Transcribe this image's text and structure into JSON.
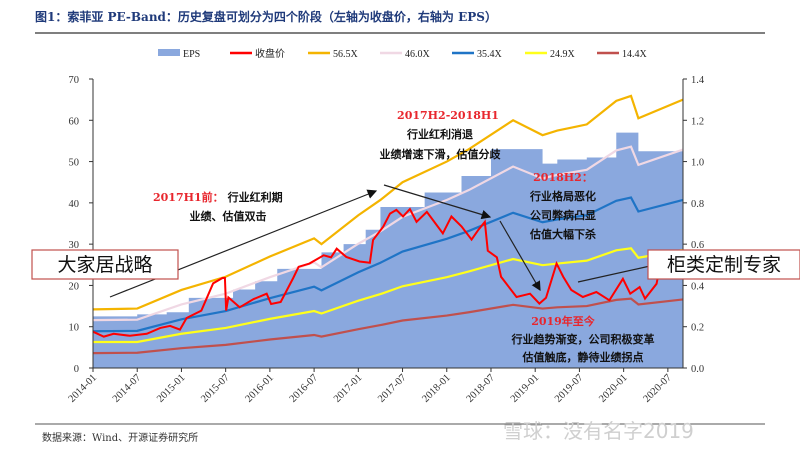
{
  "title": "图1：索菲亚 PE-Band：历史复盘可划分为四个阶段（左轴为收盘价，右轴为 EPS）",
  "source": "数据来源：Wind、开源证券研究所",
  "watermark": "雪球：没有名字2019",
  "callouts": {
    "left_box": "大家居战略",
    "right_box": "柜类定制专家"
  },
  "annotations": [
    {
      "red": "2017H1前：",
      "lines": [
        "行业红利期",
        "业绩、估值双击"
      ]
    },
    {
      "red": "2017H2-2018H1",
      "lines": [
        "行业红利消退",
        "业绩增速下滑，估值分歧"
      ]
    },
    {
      "red": "2018H2：",
      "lines": [
        "行业格局恶化",
        "公司弊病凸显",
        "估值大幅下杀"
      ]
    },
    {
      "red": "2019年至今",
      "lines": [
        "行业趋势渐变，公司积极变革",
        "估值触底，静待业绩拐点"
      ]
    }
  ],
  "chart_data": {
    "type": "line",
    "title": "索菲亚 PE-Band：历史复盘可划分为四个阶段（左轴为收盘价，右轴为 EPS）",
    "legend_position": "top",
    "grid": false,
    "x_ticks": [
      "2014-01",
      "2014-07",
      "2015-01",
      "2015-07",
      "2016-01",
      "2016-07",
      "2017-01",
      "2017-07",
      "2018-01",
      "2018-07",
      "2019-01",
      "2019-07",
      "2020-01",
      "2020-07"
    ],
    "y_left": {
      "range": [
        0,
        70
      ],
      "ticks": [
        "0",
        "10",
        "20",
        "30",
        "40",
        "50",
        "60",
        "70"
      ]
    },
    "y_right": {
      "range": [
        0,
        1.4
      ],
      "ticks": [
        "0.0",
        "0.2",
        "0.4",
        "0.6",
        "0.8",
        "1.0",
        "1.2",
        "1.4"
      ]
    },
    "legend": [
      "EPS",
      "收盘价",
      "56.5X",
      "46.0X",
      "35.4X",
      "24.9X",
      "14.4X"
    ],
    "colors": {
      "EPS": "#8aa8de",
      "收盘价": "#ff0000",
      "56.5X": "#f4b400",
      "46.0X": "#f0d8e4",
      "35.4X": "#1f74c6",
      "24.9X": "#ffff1a",
      "14.4X": "#c0504d"
    },
    "eps": {
      "name": "EPS",
      "axis": "right",
      "style": "step-area",
      "x": [
        "2014-01-01",
        "2014-07-01",
        "2014-11-01",
        "2015-02-01",
        "2015-08-01",
        "2015-11-01",
        "2016-02-01",
        "2016-08-01",
        "2016-11-01",
        "2017-02-01",
        "2017-04-01",
        "2017-10-01",
        "2018-03-01",
        "2018-07-01",
        "2019-02-01",
        "2019-04-01",
        "2019-08-01",
        "2019-12-01",
        "2020-03-01",
        "2020-09-15"
      ],
      "values": [
        0.25,
        0.26,
        0.27,
        0.34,
        0.38,
        0.42,
        0.48,
        0.56,
        0.6,
        0.67,
        0.78,
        0.85,
        0.93,
        1.06,
        0.99,
        1.01,
        1.02,
        1.14,
        1.05,
        1.05
      ]
    },
    "bands": {
      "x": [
        "2014-01-01",
        "2014-07-01",
        "2015-01-01",
        "2015-07-01",
        "2016-01-01",
        "2016-07-01",
        "2016-08-01",
        "2017-01-01",
        "2017-04-01",
        "2017-07-01",
        "2018-01-01",
        "2018-04-01",
        "2018-10-01",
        "2019-02-01",
        "2019-04-01",
        "2019-08-01",
        "2019-12-01",
        "2020-02-01",
        "2020-03-01",
        "2020-09-15"
      ],
      "series": [
        {
          "name": "56.5X",
          "values": [
            14.2,
            14.4,
            18.9,
            22.1,
            27.0,
            31.4,
            30.0,
            37.0,
            40.7,
            45.0,
            50.0,
            53.0,
            60.0,
            56.4,
            57.5,
            59.0,
            64.7,
            65.9,
            60.5,
            65.0
          ]
        },
        {
          "name": "46.0X",
          "values": [
            11.6,
            11.7,
            15.4,
            18.0,
            22.0,
            25.6,
            24.4,
            30.1,
            33.1,
            36.6,
            40.7,
            43.1,
            48.8,
            45.9,
            46.8,
            48.0,
            52.7,
            53.6,
            49.2,
            52.9
          ]
        },
        {
          "name": "35.4X",
          "values": [
            8.9,
            9.0,
            11.8,
            13.8,
            16.9,
            19.7,
            18.8,
            23.2,
            25.5,
            28.2,
            31.3,
            33.2,
            37.6,
            35.3,
            36.0,
            37.0,
            40.5,
            41.3,
            37.9,
            40.7
          ]
        },
        {
          "name": "24.9X",
          "values": [
            6.3,
            6.3,
            8.3,
            9.7,
            11.9,
            13.8,
            13.2,
            16.3,
            17.9,
            19.8,
            22.0,
            23.4,
            26.4,
            24.9,
            25.3,
            26.0,
            28.5,
            29.0,
            26.7,
            28.6
          ]
        },
        {
          "name": "14.4X",
          "values": [
            3.6,
            3.7,
            4.8,
            5.6,
            6.9,
            8.0,
            7.6,
            9.4,
            10.4,
            11.5,
            12.7,
            13.5,
            15.3,
            14.4,
            14.7,
            15.0,
            16.5,
            16.8,
            15.4,
            16.6
          ]
        }
      ]
    },
    "price": {
      "name": "收盘价",
      "axis": "left",
      "x": [
        "2014-01-01",
        "2014-02-15",
        "2014-03-25",
        "2014-06-01",
        "2014-08-10",
        "2014-10-05",
        "2014-11-15",
        "2014-12-25",
        "2015-01-22",
        "2015-03-22",
        "2015-05-10",
        "2015-06-18",
        "2015-06-28",
        "2015-07-03",
        "2015-07-12",
        "2015-08-28",
        "2015-10-25",
        "2015-12-18",
        "2016-01-06",
        "2016-02-15",
        "2016-04-06",
        "2016-04-28",
        "2016-06-12",
        "2016-08-10",
        "2016-09-10",
        "2016-10-03",
        "2016-11-12",
        "2017-01-06",
        "2017-02-18",
        "2017-03-01",
        "2017-04-12",
        "2017-05-10",
        "2017-06-06",
        "2017-07-03",
        "2017-08-01",
        "2017-08-28",
        "2017-10-10",
        "2017-12-15",
        "2018-01-20",
        "2018-03-01",
        "2018-04-12",
        "2018-05-10",
        "2018-06-06",
        "2018-06-18",
        "2018-07-25",
        "2018-08-12",
        "2018-10-15",
        "2018-12-10",
        "2019-01-18",
        "2019-02-15",
        "2019-03-28",
        "2019-04-25",
        "2019-05-28",
        "2019-07-15",
        "2019-09-10",
        "2019-11-03",
        "2019-12-28",
        "2020-01-28",
        "2020-03-06",
        "2020-03-28",
        "2020-05-15",
        "2020-06-01",
        "2020-07-10",
        "2020-08-18",
        "2020-09-15"
      ],
      "values": [
        8.8,
        7.6,
        8.3,
        7.8,
        8.3,
        9.7,
        10.2,
        9.3,
        12.1,
        13.9,
        20.5,
        21.8,
        21.8,
        13.9,
        17.1,
        14.7,
        16.7,
        18.0,
        15.5,
        16.0,
        21.8,
        24.5,
        25.3,
        27.3,
        26.8,
        28.9,
        26.9,
        25.8,
        25.5,
        31.0,
        34.2,
        37.4,
        38.3,
        36.7,
        38.5,
        35.4,
        37.8,
        32.6,
        36.7,
        34.3,
        31.1,
        33.5,
        35.4,
        28.4,
        26.8,
        22.1,
        17.2,
        18.0,
        15.6,
        17.0,
        25.3,
        22.1,
        18.9,
        17.2,
        18.4,
        16.4,
        21.6,
        18.0,
        19.6,
        16.8,
        20.4,
        25.3,
        23.3,
        24.9,
        26.0
      ]
    }
  }
}
